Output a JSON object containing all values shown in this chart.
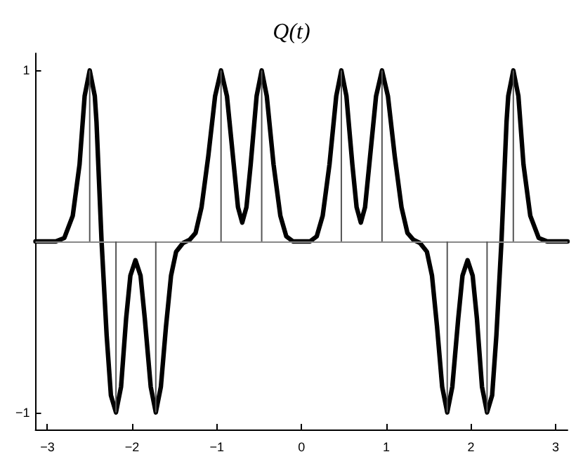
{
  "chart_data": {
    "type": "line",
    "title": "Q(t)",
    "xlim": [
      -3.14,
      3.14
    ],
    "ylim": [
      -1.1,
      1.1
    ],
    "xticks": [
      -3,
      -2,
      -1,
      0,
      1,
      2,
      3
    ],
    "yticks": [
      -1,
      1
    ],
    "grid": false,
    "marker": "none",
    "line_style": "solid",
    "ref_lines": [
      {
        "axis": "y",
        "value": 0,
        "color": "#888888"
      }
    ],
    "series": [
      {
        "color": "#000000",
        "x": [
          -3.14,
          -2.9,
          -2.8,
          -2.7,
          -2.62,
          -2.56,
          -2.5,
          -2.44,
          -2.42,
          -2.36,
          -2.3,
          -2.25,
          -2.19,
          -2.13,
          -2.07,
          -2.02,
          -1.96,
          -1.9,
          -1.85,
          -1.78,
          -1.72,
          -1.66,
          -1.6,
          -1.54,
          -1.48,
          -1.4,
          -1.32,
          -1.25,
          -1.18,
          -1.1,
          -1.02,
          -0.95,
          -0.88,
          -0.8,
          -0.75,
          -0.7,
          -0.65,
          -0.6,
          -0.53,
          -0.47,
          -0.41,
          -0.33,
          -0.25,
          -0.18,
          -0.1,
          0.1,
          0.18,
          0.25,
          0.33,
          0.41,
          0.47,
          0.53,
          0.6,
          0.65,
          0.7,
          0.75,
          0.8,
          0.88,
          0.95,
          1.02,
          1.1,
          1.18,
          1.25,
          1.32,
          1.4,
          1.48,
          1.54,
          1.6,
          1.66,
          1.72,
          1.78,
          1.85,
          1.9,
          1.96,
          2.02,
          2.07,
          2.13,
          2.19,
          2.25,
          2.3,
          2.36,
          2.42,
          2.44,
          2.5,
          2.56,
          2.62,
          2.7,
          2.8,
          2.9,
          3.14
        ],
        "values": [
          0,
          0,
          0.02,
          0.15,
          0.45,
          0.85,
          1,
          0.85,
          0.7,
          0,
          -0.55,
          -0.9,
          -1,
          -0.85,
          -0.45,
          -0.2,
          -0.11,
          -0.2,
          -0.45,
          -0.85,
          -1,
          -0.85,
          -0.5,
          -0.2,
          -0.06,
          -0.01,
          0.01,
          0.05,
          0.2,
          0.5,
          0.85,
          1,
          0.85,
          0.45,
          0.2,
          0.11,
          0.2,
          0.45,
          0.85,
          1,
          0.85,
          0.45,
          0.15,
          0.03,
          0,
          0,
          0.03,
          0.15,
          0.45,
          0.85,
          1,
          0.85,
          0.45,
          0.2,
          0.11,
          0.2,
          0.45,
          0.85,
          1,
          0.85,
          0.5,
          0.2,
          0.05,
          0.01,
          -0.01,
          -0.06,
          -0.2,
          -0.5,
          -0.85,
          -1,
          -0.85,
          -0.45,
          -0.2,
          -0.11,
          -0.2,
          -0.45,
          -0.85,
          -1,
          -0.9,
          -0.55,
          0,
          0.7,
          0.85,
          1,
          0.85,
          0.45,
          0.15,
          0.02,
          0,
          0
        ]
      },
      {
        "type": "bar",
        "color": "#555555",
        "x": [
          -2.5,
          -2.19,
          -1.72,
          -0.95,
          -0.47,
          0.47,
          0.95,
          1.72,
          2.19,
          2.5
        ],
        "values": [
          1,
          -1,
          -1,
          1,
          1,
          1,
          1,
          -1,
          -1,
          1
        ]
      }
    ]
  }
}
